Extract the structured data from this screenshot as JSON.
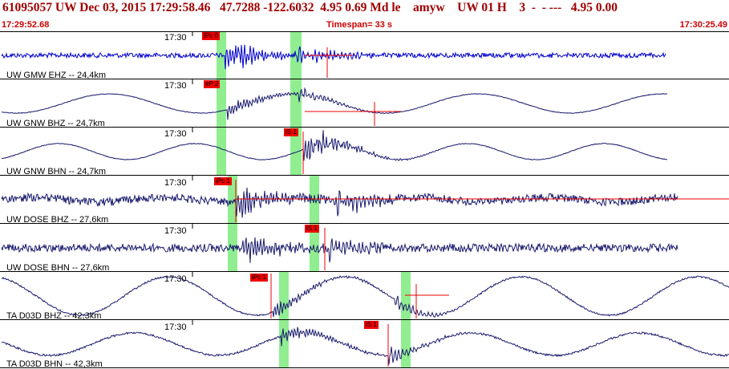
{
  "header": {
    "title_line": "61095057 UW Dec 03, 2015 17:29:58.46   47.7288 -122.6032  4.95 0.69 Md le    amyw    UW 01 H    3  -  - ---   4.95 0.00"
  },
  "timebar": {
    "start": "17:29:52.68",
    "timespan": "Timespan=  33 s",
    "end": "17:30:25.49"
  },
  "colors": {
    "title": "#a00000",
    "timebar_text": "#cc0000",
    "trace_primary": "#0000cc",
    "trace": "#1a1a6e",
    "pick": "#ee0000",
    "window": "#90ee90",
    "border": "#000000"
  },
  "channels": [
    {
      "label": "UW GMW EHZ -- 24,4km",
      "tick": "17:30",
      "pick": "iPc 0"
    },
    {
      "label": "UW GNW BHZ -- 24,7km",
      "tick": "17:30",
      "pick": "eP 2"
    },
    {
      "label": "UW GNW BHN -- 24,7km",
      "tick": "17:30",
      "pick": "iS 1"
    },
    {
      "label": "UW DOSE BHZ -- 27,6km",
      "tick": "17:30",
      "pick": "iPc 1"
    },
    {
      "label": "UW DOSE BHN -- 27,6km",
      "tick": "17:30",
      "pick": "iS 1"
    },
    {
      "label": "TA D03D BHZ -- 42,3km",
      "tick": "17:30",
      "pick": "iPc 1"
    },
    {
      "label": "TA D03D BHN -- 42,3km",
      "tick": "17:30",
      "pick": "iS 1"
    }
  ]
}
